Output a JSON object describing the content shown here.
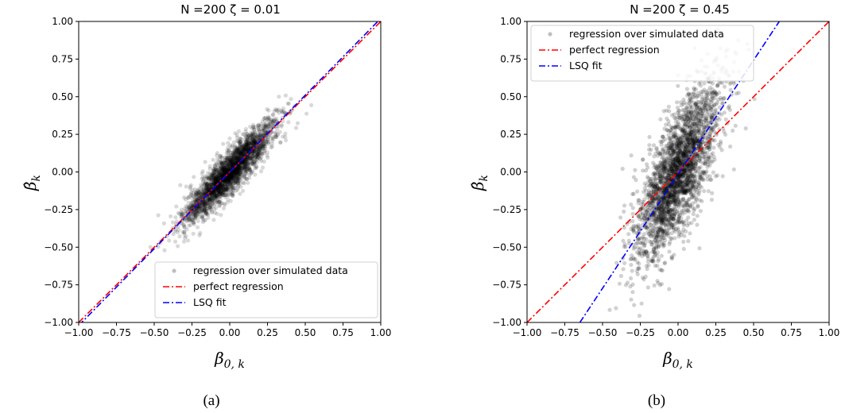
{
  "chart_data": [
    {
      "type": "scatter",
      "title": "N =200  ζ =  0.01",
      "xlabel": "β0, k",
      "ylabel": "β̂k",
      "xlim": [
        -1.0,
        1.0
      ],
      "ylim": [
        -1.0,
        1.0
      ],
      "xticks": [
        "−1.00",
        "−0.75",
        "−0.50",
        "−0.25",
        "0.00",
        "0.25",
        "0.50",
        "0.75",
        "1.00"
      ],
      "yticks": [
        "−1.00",
        "−0.75",
        "−0.50",
        "−0.25",
        "0.00",
        "0.25",
        "0.50",
        "0.75",
        "1.00"
      ],
      "grid": false,
      "legend_position": "lower-right",
      "scatter_cloud": {
        "color": "#000000",
        "alpha": 0.15,
        "x_sd": 0.15,
        "slope": 1.0,
        "y_noise_sd": 0.07,
        "x_range": [
          -0.55,
          0.55
        ],
        "y_range": [
          -0.55,
          0.7
        ]
      },
      "series": [
        {
          "name": "regression over simulated data",
          "kind": "scatter",
          "color": "#808080"
        },
        {
          "name": "perfect regression",
          "kind": "line",
          "color": "#ff0000",
          "dash": "dashdot",
          "x": [
            -1.0,
            1.0
          ],
          "y": [
            -1.0,
            1.0
          ]
        },
        {
          "name": "LSQ fit",
          "kind": "line",
          "color": "#0000ff",
          "dash": "dashdot",
          "x": [
            -1.0,
            1.0
          ],
          "y": [
            -1.02,
            1.02
          ]
        }
      ],
      "caption": "(a)"
    },
    {
      "type": "scatter",
      "title": "N =200  ζ =  0.45",
      "xlabel": "β0, k",
      "ylabel": "β̂k",
      "xlim": [
        -1.0,
        1.0
      ],
      "ylim": [
        -1.0,
        1.0
      ],
      "xticks": [
        "−1.00",
        "−0.75",
        "−0.50",
        "−0.25",
        "0.00",
        "0.25",
        "0.50",
        "0.75",
        "1.00"
      ],
      "yticks": [
        "−1.00",
        "−0.75",
        "−0.50",
        "−0.25",
        "0.00",
        "0.25",
        "0.50",
        "0.75",
        "1.00"
      ],
      "grid": false,
      "legend_position": "upper-left",
      "scatter_cloud": {
        "color": "#000000",
        "alpha": 0.18,
        "x_sd": 0.14,
        "slope": 1.5,
        "y_noise_sd": 0.2,
        "x_range": [
          -0.7,
          0.7
        ],
        "y_range": [
          -1.0,
          1.0
        ]
      },
      "series": [
        {
          "name": "regression over simulated data",
          "kind": "scatter",
          "color": "#808080"
        },
        {
          "name": "perfect regression",
          "kind": "line",
          "color": "#ff0000",
          "dash": "dashdot",
          "x": [
            -1.0,
            1.0
          ],
          "y": [
            -1.0,
            1.0
          ]
        },
        {
          "name": "LSQ fit",
          "kind": "line",
          "color": "#0000ff",
          "dash": "dashdot",
          "x": [
            -0.65,
            0.67
          ],
          "y": [
            -1.0,
            1.0
          ]
        }
      ],
      "caption": "(b)"
    }
  ]
}
